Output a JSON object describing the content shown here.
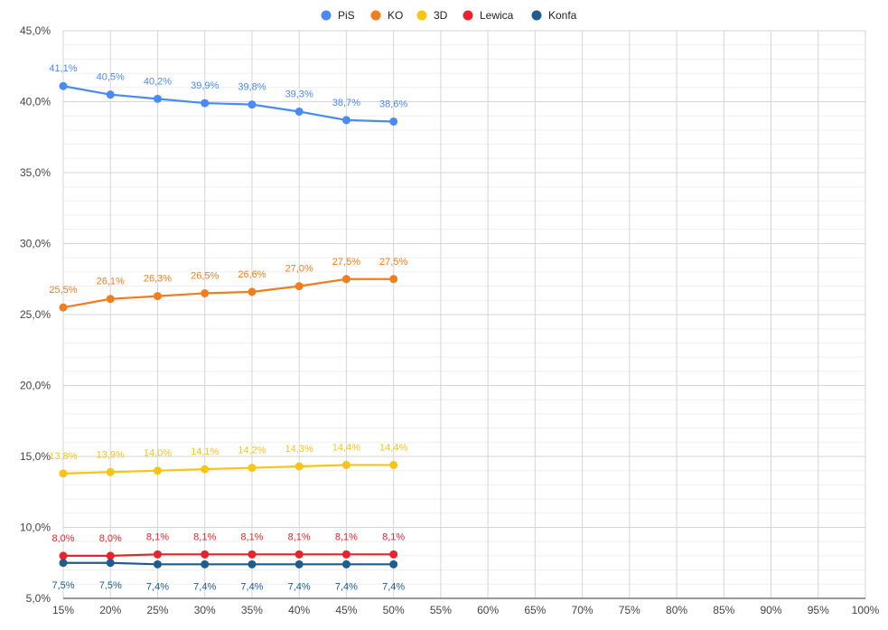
{
  "chart_data": {
    "type": "line",
    "title": "",
    "xlabel": "",
    "ylabel": "",
    "x": [
      "15%",
      "20%",
      "25%",
      "30%",
      "35%",
      "40%",
      "45%",
      "50%"
    ],
    "x_axis_ticks": [
      "15%",
      "20%",
      "25%",
      "30%",
      "35%",
      "40%",
      "45%",
      "50%",
      "55%",
      "60%",
      "65%",
      "70%",
      "75%",
      "80%",
      "85%",
      "90%",
      "95%",
      "100%"
    ],
    "y_axis_ticks": [
      "5,0%",
      "10,0%",
      "15,0%",
      "20,0%",
      "25,0%",
      "30,0%",
      "35,0%",
      "40,0%",
      "45,0%"
    ],
    "ylim": [
      5,
      45
    ],
    "xlim": [
      15,
      100
    ],
    "grid": true,
    "legend_position": "top-center",
    "series": [
      {
        "name": "PiS",
        "color": "#4a8af4",
        "values": [
          41.1,
          40.5,
          40.2,
          39.9,
          39.8,
          39.3,
          38.7,
          38.6
        ],
        "labels": [
          "41,1%",
          "40,5%",
          "40,2%",
          "39,9%",
          "39,8%",
          "39,3%",
          "38,7%",
          "38,6%"
        ]
      },
      {
        "name": "KO",
        "color": "#f07d1e",
        "values": [
          25.5,
          26.1,
          26.3,
          26.5,
          26.6,
          27.0,
          27.5,
          27.5
        ],
        "labels": [
          "25,5%",
          "26,1%",
          "26,3%",
          "26,5%",
          "26,6%",
          "27,0%",
          "27,5%",
          "27,5%"
        ]
      },
      {
        "name": "3D",
        "color": "#f6c518",
        "values": [
          13.8,
          13.9,
          14.0,
          14.1,
          14.2,
          14.3,
          14.4,
          14.4
        ],
        "labels": [
          "13,8%",
          "13,9%",
          "14,0%",
          "14,1%",
          "14,2%",
          "14,3%",
          "14,4%",
          "14,4%"
        ]
      },
      {
        "name": "Lewica",
        "color": "#e8232a",
        "values": [
          8.0,
          8.0,
          8.1,
          8.1,
          8.1,
          8.1,
          8.1,
          8.1
        ],
        "labels": [
          "8,0%",
          "8,0%",
          "8,1%",
          "8,1%",
          "8,1%",
          "8,1%",
          "8,1%",
          "8,1%"
        ]
      },
      {
        "name": "Konfa",
        "color": "#1f5c8f",
        "values": [
          7.5,
          7.5,
          7.4,
          7.4,
          7.4,
          7.4,
          7.4,
          7.4
        ],
        "labels": [
          "7,5%",
          "7,5%",
          "7,4%",
          "7,4%",
          "7,4%",
          "7,4%",
          "7,4%",
          "7,4%"
        ]
      }
    ]
  }
}
